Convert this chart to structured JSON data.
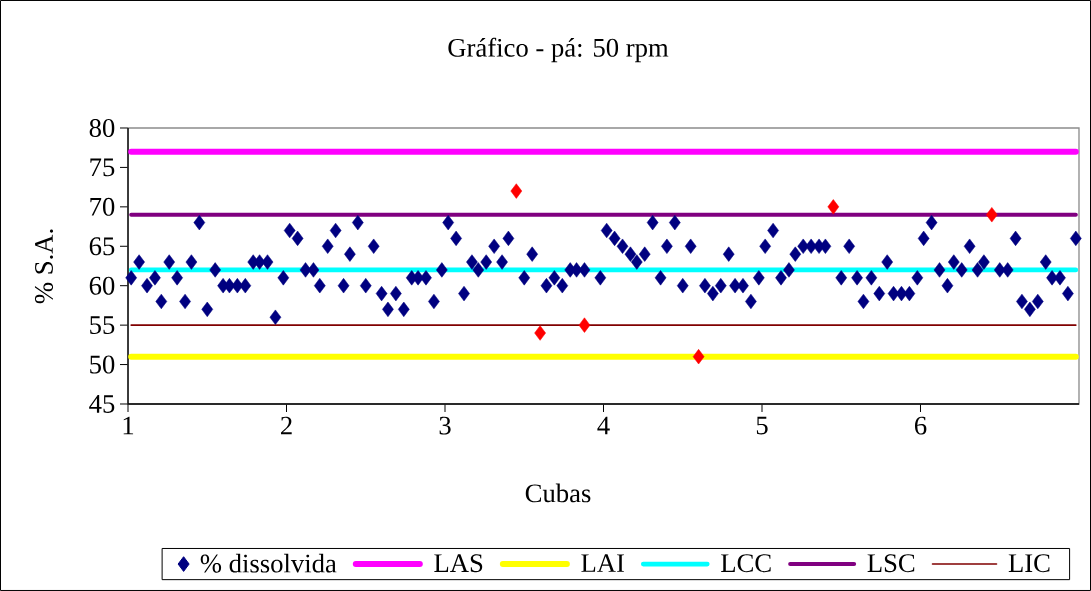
{
  "chart_data": {
    "type": "scatter",
    "title": "Gráfico - pá: 50 rpm",
    "xlabel": "Cubas",
    "ylabel": "% S.A.",
    "xlim": [
      1,
      7
    ],
    "xticks": [
      1,
      2,
      3,
      4,
      5,
      6
    ],
    "ylim": [
      45,
      80
    ],
    "yticks": [
      45,
      50,
      55,
      60,
      65,
      70,
      75,
      80
    ],
    "legend": "bottom",
    "series": [
      {
        "name": "% dissolvida",
        "color": "#000080",
        "marker": "diamond",
        "x": [
          1.02,
          1.07,
          1.12,
          1.17,
          1.21,
          1.26,
          1.31,
          1.36,
          1.4,
          1.45,
          1.5,
          1.55,
          1.6,
          1.64,
          1.69,
          1.74,
          1.79,
          1.83,
          1.88,
          1.93,
          1.98,
          2.02,
          2.07,
          2.12,
          2.17,
          2.21,
          2.26,
          2.31,
          2.36,
          2.4,
          2.45,
          2.5,
          2.55,
          2.6,
          2.64,
          2.69,
          2.74,
          2.79,
          2.83,
          2.88,
          2.93,
          2.98,
          3.02,
          3.07,
          3.12,
          3.17,
          3.21,
          3.26,
          3.31,
          3.36,
          3.4,
          3.45,
          3.5,
          3.55,
          3.6,
          3.64,
          3.69,
          3.74,
          3.79,
          3.83,
          3.88,
          3.93,
          3.98,
          4.02,
          4.07,
          4.12,
          4.17,
          4.21,
          4.26,
          4.31,
          4.36,
          4.4,
          4.45,
          4.5,
          4.55,
          4.6,
          4.64,
          4.69,
          4.74,
          4.79,
          4.83,
          4.88,
          4.93,
          4.98,
          5.02,
          5.07,
          5.12,
          5.17,
          5.21,
          5.26,
          5.31,
          5.36,
          5.4,
          5.45,
          5.5,
          5.55,
          5.6,
          5.64,
          5.69,
          5.74,
          5.79,
          5.83,
          5.88,
          5.93,
          5.98,
          6.02,
          6.07,
          6.12,
          6.17,
          6.21,
          6.26,
          6.31,
          6.36,
          6.4,
          6.45,
          6.5,
          6.55,
          6.6,
          6.64,
          6.69,
          6.74,
          6.79,
          6.83,
          6.88,
          6.93,
          6.98
        ],
        "values": [
          61,
          63,
          60,
          61,
          58,
          63,
          61,
          58,
          63,
          68,
          57,
          62,
          60,
          60,
          60,
          60,
          63,
          63,
          63,
          56,
          61,
          67,
          66,
          62,
          62,
          60,
          65,
          67,
          60,
          64,
          68,
          60,
          65,
          59,
          57,
          59,
          57,
          61,
          61,
          61,
          58,
          62,
          68,
          66,
          59,
          63,
          62,
          63,
          65,
          63,
          66,
          null,
          61,
          64,
          null,
          60,
          61,
          60,
          62,
          62,
          62,
          null,
          61,
          67,
          66,
          65,
          64,
          63,
          64,
          68,
          61,
          65,
          68,
          60,
          65,
          null,
          60,
          59,
          60,
          64,
          60,
          60,
          58,
          61,
          65,
          67,
          61,
          62,
          64,
          65,
          65,
          65,
          65,
          null,
          61,
          65,
          61,
          58,
          61,
          59,
          63,
          59,
          59,
          59,
          61,
          66,
          68,
          62,
          60,
          63,
          62,
          65,
          62,
          63,
          null,
          62,
          62,
          66,
          58,
          57,
          58,
          63,
          61,
          61,
          59,
          66
        ]
      },
      {
        "color": "#ff0000",
        "marker": "diamond",
        "x": [
          3.45,
          3.6,
          3.88,
          4.6,
          5.45,
          6.45
        ],
        "values": [
          72,
          54,
          55,
          51,
          70,
          69
        ]
      },
      {
        "name": "LAS",
        "type": "line",
        "color": "#ff00ff",
        "marker": "none",
        "x": [
          1.02,
          6.98
        ],
        "values": [
          77,
          77
        ]
      },
      {
        "name": "LAI",
        "type": "line",
        "color": "#ffff00",
        "marker": "none",
        "x": [
          1.02,
          6.98
        ],
        "values": [
          51,
          51
        ]
      },
      {
        "name": "LCC",
        "type": "line",
        "color": "#00ffff",
        "marker": "none",
        "x": [
          1.02,
          6.98
        ],
        "values": [
          62,
          62
        ]
      },
      {
        "name": "LSC",
        "type": "line",
        "color": "#800080",
        "marker": "none",
        "x": [
          1.02,
          6.98
        ],
        "values": [
          69,
          69
        ]
      },
      {
        "name": "LIC",
        "type": "line",
        "color": "#800000",
        "marker": "none",
        "x": [
          1.02,
          6.98
        ],
        "values": [
          55,
          55
        ]
      }
    ]
  }
}
